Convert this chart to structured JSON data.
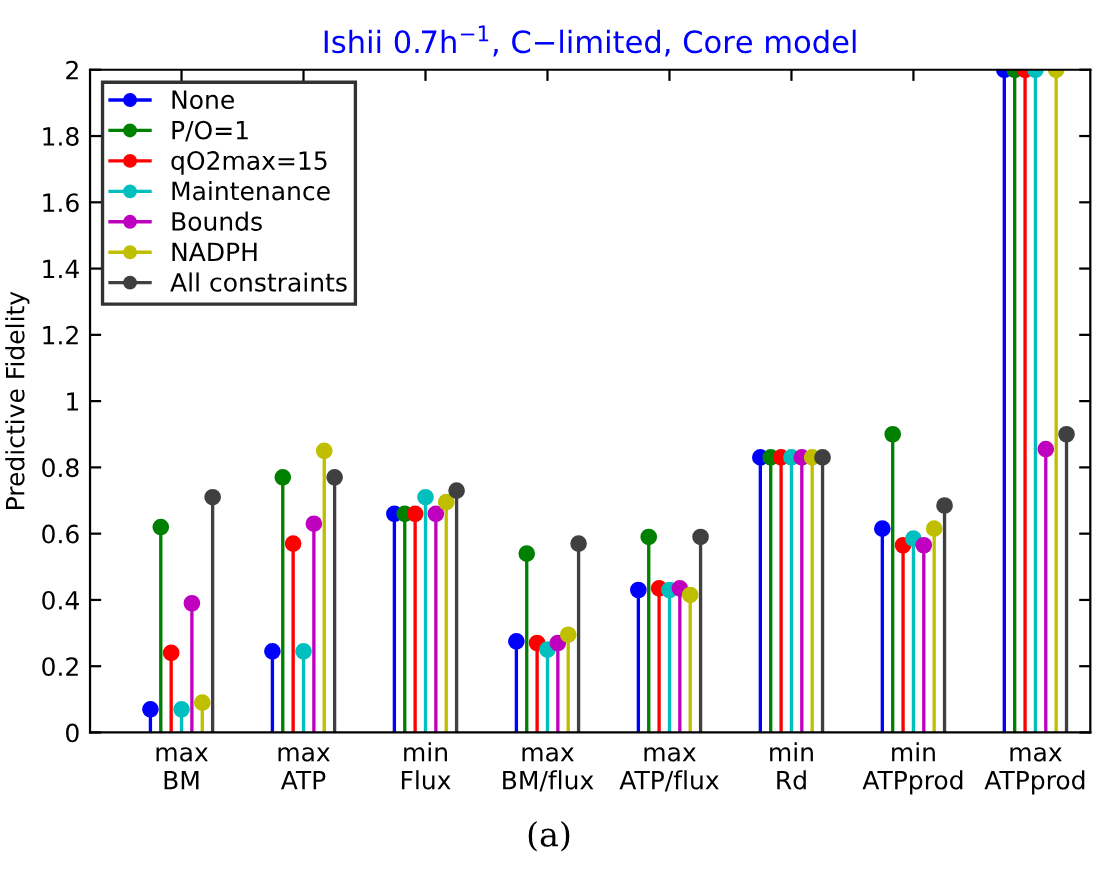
{
  "chart_data": {
    "type": "lollipop",
    "title": "Ishii 0.7h$^{−1}$, C−limited, Core model",
    "ylabel": "Predictive Fidelity",
    "categories": [
      "max\nBM",
      "max\nATP",
      "min\nFlux",
      "max\nBM/flux",
      "max\nATP/flux",
      "min\nRd",
      "min\nATPprod",
      "max\nATPprod"
    ],
    "series": [
      {
        "name": "None",
        "color": "#0000ff",
        "values": [
          0.07,
          0.245,
          0.66,
          0.275,
          0.43,
          0.83,
          0.615,
          2
        ]
      },
      {
        "name": "P/O=1",
        "color": "#008000",
        "values": [
          0.62,
          0.77,
          0.66,
          0.54,
          0.59,
          0.83,
          0.9,
          2
        ]
      },
      {
        "name": "qO2max=15",
        "color": "#ff0000",
        "values": [
          0.24,
          0.57,
          0.66,
          0.27,
          0.435,
          0.83,
          0.565,
          2
        ]
      },
      {
        "name": "Maintenance",
        "color": "#00bfbf",
        "values": [
          0.07,
          0.245,
          0.71,
          0.25,
          0.43,
          0.83,
          0.585,
          2
        ]
      },
      {
        "name": "Bounds",
        "color": "#bf00bf",
        "values": [
          0.39,
          0.63,
          0.66,
          0.27,
          0.435,
          0.83,
          0.565,
          0.855
        ]
      },
      {
        "name": "NADPH",
        "color": "#bfbf00",
        "values": [
          0.09,
          0.85,
          0.695,
          0.295,
          0.415,
          0.83,
          0.615,
          2
        ]
      },
      {
        "name": "All constraints",
        "color": "#404040",
        "values": [
          0.71,
          0.77,
          0.73,
          0.57,
          0.59,
          0.83,
          0.685,
          0.9
        ]
      }
    ],
    "ylim": [
      0,
      2
    ],
    "yticks": [
      0,
      0.2,
      0.4,
      0.6,
      0.8,
      1,
      1.2,
      1.4,
      1.6,
      1.8,
      2
    ],
    "marker": "circle",
    "legend": "top left",
    "grid": false,
    "annotations": [
      "(a)"
    ]
  }
}
